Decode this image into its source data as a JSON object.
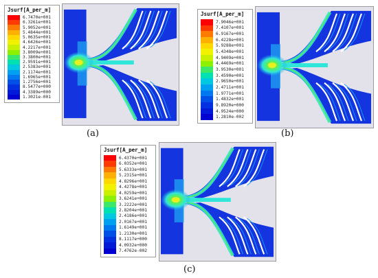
{
  "panels": [
    {
      "id": "a",
      "legend_title": "Jsurf[A_per_m]",
      "ticks": [
        "6.7470e+001",
        "6.3261e+001",
        "5.9052e+001",
        "5.4844e+001",
        "5.0635e+001",
        "4.6426e+001",
        "4.2217e+001",
        "3.8009e+001",
        "3.3800e+001",
        "2.9591e+001",
        "2.5383e+001",
        "2.1174e+001",
        "1.6965e+001",
        "1.2756e+001",
        "8.5477e+000",
        "4.3389e+000",
        "1.3021e-001"
      ],
      "caption": "(a)"
    },
    {
      "id": "b",
      "legend_title": "Jsurf[A_per_m]",
      "ticks": [
        "7.9046e+001",
        "7.4107e+001",
        "6.9167e+001",
        "6.4228e+001",
        "5.9288e+001",
        "5.4348e+001",
        "4.9409e+001",
        "4.4469e+001",
        "3.9530e+001",
        "3.4590e+001",
        "2.9650e+001",
        "2.4711e+001",
        "1.9771e+001",
        "1.4832e+001",
        "9.8920e+000",
        "4.9524e+000",
        "1.2810e-002"
      ],
      "caption": "(b)"
    },
    {
      "id": "c",
      "legend_title": "Jsurf[A_per_m]",
      "ticks": [
        "6.4370e+001",
        "6.0352e+001",
        "5.6333e+001",
        "5.2315e+001",
        "4.8296e+001",
        "4.4278e+001",
        "4.0259e+001",
        "3.6241e+001",
        "3.2222e+001",
        "2.8204e+001",
        "2.4186e+001",
        "2.0167e+001",
        "1.6149e+001",
        "1.2130e+001",
        "8.1117e+000",
        "4.0932e+000",
        "7.4762e-002"
      ],
      "caption": "(c)"
    }
  ],
  "colorscale": [
    "#ff0000",
    "#ff3a00",
    "#ff7a00",
    "#ffb000",
    "#ffd800",
    "#f2f200",
    "#c8f000",
    "#8cf000",
    "#3ce86a",
    "#00e0b0",
    "#00c8e0",
    "#00a0f0",
    "#0078f0",
    "#0050e8",
    "#0030e0",
    "#0018d8",
    "#0000d0"
  ],
  "field_colors": {
    "base": "#1434e0",
    "mid": "#1e9cf0",
    "cyan": "#30e6d8",
    "green": "#58f05c",
    "yellow": "#e8f020",
    "slot": "#ffffff"
  }
}
